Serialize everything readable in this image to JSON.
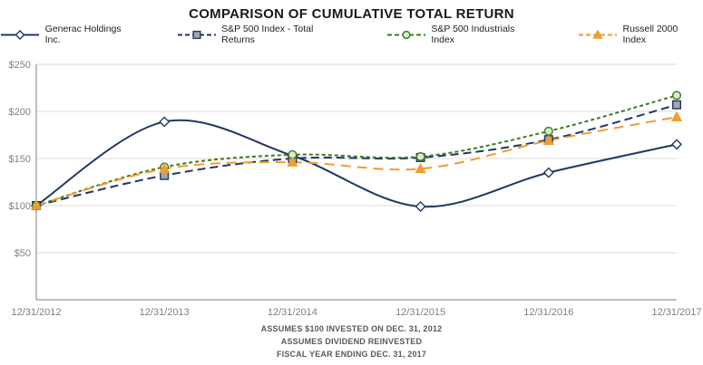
{
  "chart_data": {
    "type": "line",
    "title": "COMPARISON OF CUMULATIVE TOTAL RETURN",
    "x_labels": [
      "12/31/2012",
      "12/31/2013",
      "12/31/2014",
      "12/31/2015",
      "12/31/2016",
      "12/31/2017"
    ],
    "ylim": [
      0,
      250
    ],
    "y_ticks": [
      50,
      100,
      150,
      200,
      250
    ],
    "y_tick_prefix": "$",
    "grid": true,
    "legend_position": "top",
    "series": [
      {
        "name": "Generac Holdings Inc.",
        "values": [
          100,
          189,
          153,
          99,
          135,
          165
        ],
        "color": "#1f3864",
        "marker": "diamond",
        "marker_fill": "#ffffff",
        "dash": "solid"
      },
      {
        "name": "S&P 500 Index - Total Returns",
        "values": [
          100,
          132,
          150,
          151,
          170,
          207
        ],
        "color": "#1f3864",
        "marker": "square",
        "marker_fill": "#a6a6a6",
        "dash": "9 5"
      },
      {
        "name": "S&P 500 Industrials Index",
        "values": [
          100,
          141,
          154,
          152,
          179,
          217
        ],
        "color": "#3e7a1e",
        "marker": "circle",
        "marker_fill": "#d9ead3",
        "dash": "4 3"
      },
      {
        "name": "Russell 2000 Index",
        "values": [
          100,
          139,
          146,
          139,
          169,
          194
        ],
        "color": "#f09d2e",
        "marker": "triangle",
        "marker_fill": "#f09d2e",
        "dash": "11 7"
      }
    ],
    "style": {
      "grid_color": "#d9d9d9",
      "axis_color": "#808080",
      "tick_label_color": "#808080"
    }
  },
  "footnotes": [
    "ASSUMES $100 INVESTED ON DEC. 31, 2012",
    "ASSUMES DIVIDEND REINVESTED",
    "FISCAL YEAR ENDING DEC. 31, 2017"
  ]
}
